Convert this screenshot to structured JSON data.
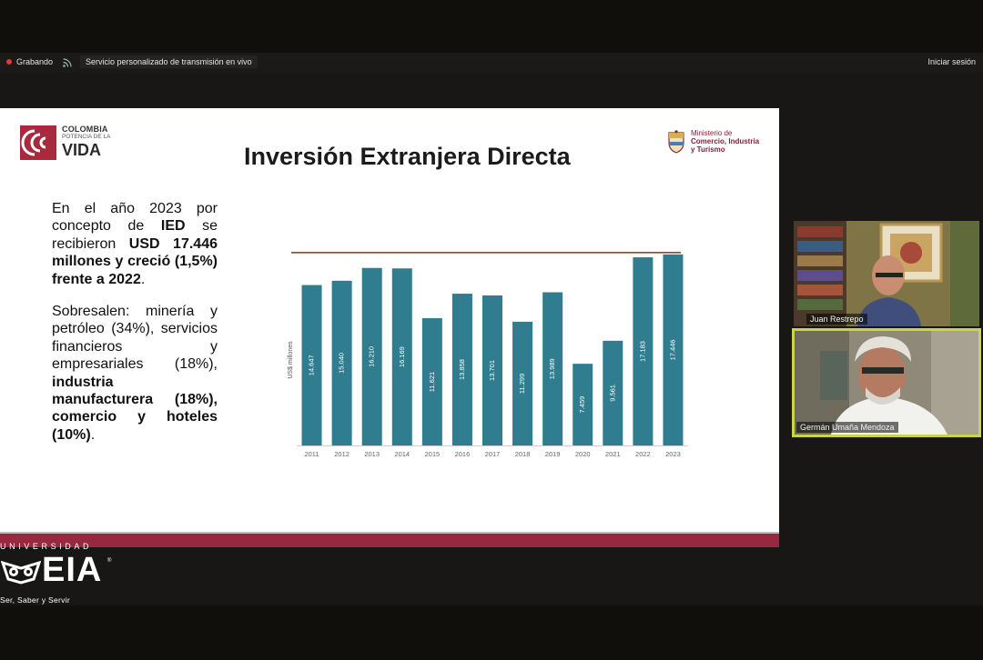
{
  "toolbar": {
    "recording_label": "Grabando",
    "stream_label": "Servicio personalizado de transmisión en vivo",
    "signin_label": "Iniciar sesión"
  },
  "slide": {
    "logo_left": {
      "line1": "COLOMBIA",
      "line2": "POTENCIA DE LA",
      "line3": "VIDA"
    },
    "logo_right": {
      "line1": "Ministerio de",
      "line2": "Comercio, Industria",
      "line3": "y Turismo"
    },
    "title": "Inversión Extranjera Directa",
    "paragraph1": {
      "t1": "En el año 2023 por concepto de ",
      "b1": "IED",
      "t2": " se recibieron ",
      "b2": "USD 17.446 millones y creció (1,5%) frente a 2022",
      "t3": "."
    },
    "paragraph2": {
      "t1": "Sobresalen: minería y petróleo (34%), servicios financieros y empresariales (18%), ",
      "b1": "industria manufacturera (18%), comercio y hoteles (10%)",
      "t2": "."
    }
  },
  "chart_data": {
    "type": "bar",
    "categories": [
      "2011",
      "2012",
      "2013",
      "2014",
      "2015",
      "2016",
      "2017",
      "2018",
      "2019",
      "2020",
      "2021",
      "2022",
      "2023"
    ],
    "values": [
      14647,
      15040,
      16210,
      16169,
      11621,
      13858,
      13701,
      11299,
      13989,
      7459,
      9561,
      17183,
      17446
    ],
    "value_labels": [
      "14.647",
      "15.040",
      "16.210",
      "16.169",
      "11.621",
      "13.858",
      "13.701",
      "11.299",
      "13.989",
      "7.459",
      "9.561",
      "17.183",
      "17.446"
    ],
    "ylabel": "US$ millones",
    "ylim": [
      0,
      17600
    ],
    "reference_line": 17446,
    "bar_color": "#2f7d8f",
    "reference_line_color": "#a63d2e"
  },
  "participants": [
    {
      "name": "Juan Restrepo"
    },
    {
      "name": "Germán Umaña Mendoza"
    }
  ],
  "watermark": {
    "top": "UNIVERSIDAD",
    "wordmark": "EIA",
    "registered": "®",
    "motto": "Ser, Saber y Servir"
  }
}
